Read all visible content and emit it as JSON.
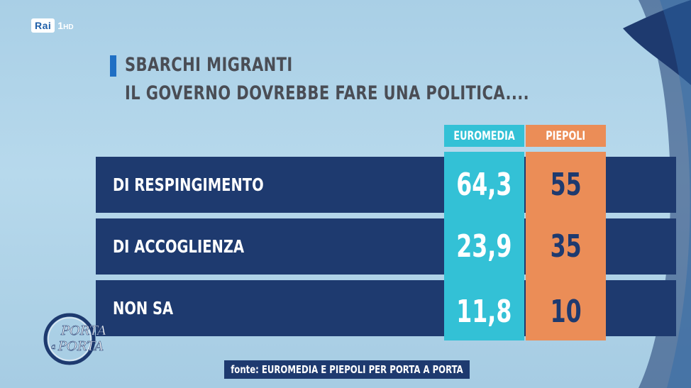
{
  "channel": {
    "brand": "Rai",
    "name": "1",
    "suffix": "HD"
  },
  "show_logo": {
    "line1": "PORTA",
    "line2": "PORTA",
    "connector": "a"
  },
  "colors": {
    "euromedia": "#33c1d6",
    "piepoli": "#eb8d57",
    "row_bg": "#1e3a6f",
    "title": "#4a4d55"
  },
  "chart_data": {
    "type": "table",
    "title_line1": "SBARCHI MIGRANTI",
    "title_line2": "IL GOVERNO DOVREBBE FARE UNA POLITICA....",
    "columns": [
      "EUROMEDIA",
      "PIEPOLI"
    ],
    "rows": [
      {
        "label": "DI RESPINGIMENTO",
        "euromedia": "64,3",
        "piepoli": "55"
      },
      {
        "label": "DI ACCOGLIENZA",
        "euromedia": "23,9",
        "piepoli": "35"
      },
      {
        "label": "NON SA",
        "euromedia": "11,8",
        "piepoli": "10"
      }
    ],
    "source": "fonte: EUROMEDIA E PIEPOLI PER PORTA A PORTA"
  }
}
